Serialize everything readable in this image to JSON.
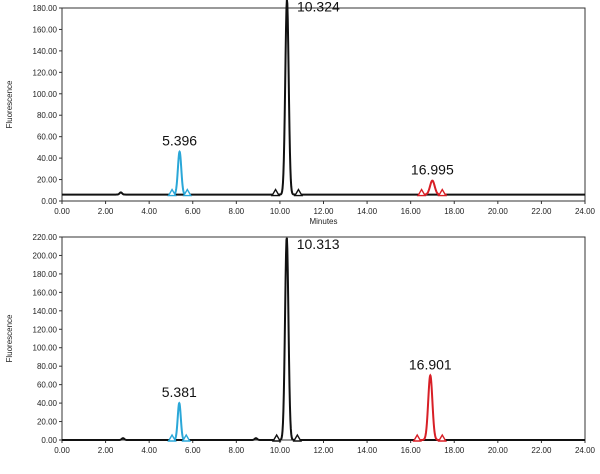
{
  "chart_data": [
    {
      "type": "line",
      "xlabel": "Minutes",
      "ylabel": "Fluorescence",
      "xlim": [
        0,
        24
      ],
      "ylim": [
        0,
        180
      ],
      "xticks": [
        "0.00",
        "2.00",
        "4.00",
        "6.00",
        "8.00",
        "10.00",
        "12.00",
        "14.00",
        "16.00",
        "18.00",
        "20.00",
        "22.00",
        "24.00"
      ],
      "yticks": [
        "0.00",
        "20.00",
        "40.00",
        "60.00",
        "80.00",
        "100.00",
        "120.00",
        "140.00",
        "160.00",
        "180.00"
      ],
      "baseline": 6,
      "grid": false,
      "peaks": [
        {
          "label": "5.396",
          "rt": 5.396,
          "height": 40,
          "color": "#2aa7d8",
          "width": 0.22,
          "start": 5.05,
          "end": 5.75
        },
        {
          "label": "10.324",
          "rt": 10.324,
          "height": 182,
          "color": "#111111",
          "width": 0.22,
          "start": 9.8,
          "end": 10.85
        },
        {
          "label": "16.995",
          "rt": 16.995,
          "height": 13,
          "color": "#d81f26",
          "width": 0.3,
          "start": 16.5,
          "end": 17.45
        }
      ],
      "minor_peaks": [
        {
          "rt": 2.7,
          "height": 2,
          "color": "#111111"
        }
      ]
    },
    {
      "type": "line",
      "xlabel": "",
      "ylabel": "Fluorescence",
      "xlim": [
        0,
        24
      ],
      "ylim": [
        0,
        220
      ],
      "xticks": [
        "0.00",
        "2.00",
        "4.00",
        "6.00",
        "8.00",
        "10.00",
        "12.00",
        "14.00",
        "16.00",
        "18.00",
        "20.00",
        "22.00",
        "24.00"
      ],
      "yticks": [
        "0.00",
        "20.00",
        "40.00",
        "60.00",
        "80.00",
        "100.00",
        "120.00",
        "140.00",
        "160.00",
        "180.00",
        "200.00",
        "220.00"
      ],
      "baseline": 0,
      "grid": false,
      "peaks": [
        {
          "label": "5.381",
          "rt": 5.381,
          "height": 40,
          "color": "#2aa7d8",
          "width": 0.2,
          "start": 5.05,
          "end": 5.7
        },
        {
          "label": "10.313",
          "rt": 10.313,
          "height": 220,
          "color": "#111111",
          "width": 0.22,
          "start": 9.85,
          "end": 10.8
        },
        {
          "label": "16.901",
          "rt": 16.901,
          "height": 70,
          "color": "#d81f26",
          "width": 0.27,
          "start": 16.3,
          "end": 17.45
        }
      ],
      "minor_peaks": [
        {
          "rt": 2.8,
          "height": 2,
          "color": "#111111"
        },
        {
          "rt": 8.9,
          "height": 2,
          "color": "#111111"
        }
      ]
    }
  ]
}
